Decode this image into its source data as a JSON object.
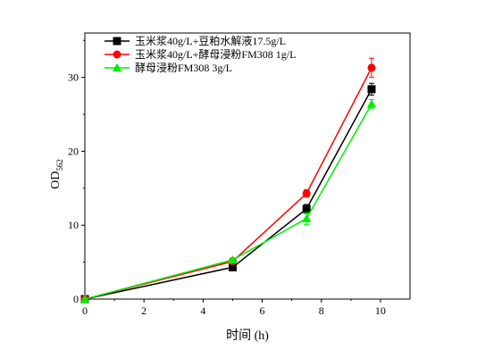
{
  "chart_data": {
    "type": "line",
    "xlabel": "时间 (h)",
    "ylabel_main": "OD",
    "ylabel_sub": "562",
    "xlim": [
      0,
      11
    ],
    "ylim": [
      0,
      36
    ],
    "x_ticks": [
      0,
      2,
      4,
      6,
      8,
      10
    ],
    "y_ticks": [
      0,
      10,
      20,
      30
    ],
    "grid": false,
    "legend_position": "top-left",
    "series": [
      {
        "name": "玉米浆40g/L+豆粕水解液17.5g/L",
        "color": "#000000",
        "marker": "square",
        "x": [
          0,
          5,
          7.5,
          9.7
        ],
        "y": [
          0,
          4.3,
          12.2,
          28.4
        ],
        "err": [
          0,
          0.3,
          0.6,
          0.8
        ]
      },
      {
        "name": "玉米浆40g/L+酵母浸粉FM308 1g/L",
        "color": "#ff0000",
        "marker": "circle",
        "x": [
          0,
          5,
          7.5,
          9.7
        ],
        "y": [
          0,
          5.1,
          14.3,
          31.3
        ],
        "err": [
          0,
          0.3,
          0.5,
          1.3
        ]
      },
      {
        "name": "酵母浸粉FM308 3g/L",
        "color": "#00ee00",
        "marker": "triangle",
        "x": [
          0,
          5,
          7.5,
          9.7
        ],
        "y": [
          0,
          5.3,
          10.9,
          26.4
        ],
        "err": [
          0,
          0.3,
          0.8,
          0.6
        ]
      }
    ]
  }
}
